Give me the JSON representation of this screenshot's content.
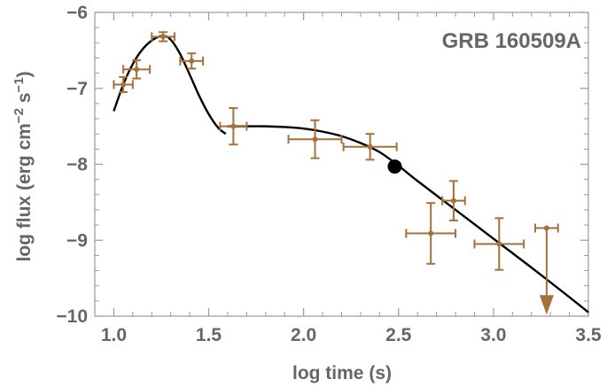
{
  "chart_data": {
    "type": "scatter",
    "title": "GRB 160509A",
    "xlabel": "log time (s)",
    "ylabel_parts": [
      "log flux (erg cm",
      "−2",
      " s",
      "−1",
      ")"
    ],
    "xlim": [
      0.9,
      3.5
    ],
    "ylim": [
      -10,
      -6
    ],
    "xticks": [
      1.0,
      1.5,
      2.0,
      2.5,
      3.0,
      3.5
    ],
    "xtick_labels": [
      "1.0",
      "1.5",
      "2.0",
      "2.5",
      "3.0",
      "3.5"
    ],
    "yticks": [
      -6,
      -7,
      -8,
      -9,
      -10
    ],
    "ytick_labels": [
      "−6",
      "−7",
      "−8",
      "−9",
      "−10"
    ],
    "colors": {
      "data": "#A5703A",
      "model": "#000000",
      "text": "#666666",
      "frame": "#999999"
    },
    "series": [
      {
        "marker": "errorbar",
        "points": [
          {
            "x": 1.05,
            "y": -6.95,
            "xerr": [
              0.05,
              0.05
            ],
            "yerr": [
              0.1,
              0.1
            ]
          },
          {
            "x": 1.12,
            "y": -6.75,
            "xerr": [
              0.07,
              0.07
            ],
            "yerr": [
              0.12,
              0.12
            ]
          },
          {
            "x": 1.26,
            "y": -6.32,
            "xerr": [
              0.06,
              0.06
            ],
            "yerr": [
              0.06,
              0.06
            ]
          },
          {
            "x": 1.41,
            "y": -6.64,
            "xerr": [
              0.06,
              0.06
            ],
            "yerr": [
              0.1,
              0.1
            ]
          },
          {
            "x": 1.63,
            "y": -7.5,
            "xerr": [
              0.07,
              0.07
            ],
            "yerr": [
              0.24,
              0.24
            ]
          },
          {
            "x": 2.06,
            "y": -7.67,
            "xerr": [
              0.14,
              0.14
            ],
            "yerr": [
              0.25,
              0.25
            ]
          },
          {
            "x": 2.35,
            "y": -7.77,
            "xerr": [
              0.14,
              0.14
            ],
            "yerr": [
              0.17,
              0.17
            ]
          },
          {
            "x": 2.67,
            "y": -8.91,
            "xerr": [
              0.13,
              0.13
            ],
            "yerr": [
              0.4,
              0.4
            ]
          },
          {
            "x": 2.79,
            "y": -8.48,
            "xerr": [
              0.06,
              0.06
            ],
            "yerr": [
              0.26,
              0.26
            ]
          },
          {
            "x": 3.03,
            "y": -9.05,
            "xerr": [
              0.13,
              0.13
            ],
            "yerr": [
              0.34,
              0.34
            ]
          },
          {
            "x": 3.28,
            "y": -8.84,
            "xerr": [
              0.06,
              0.06
            ],
            "yerr": [
              0,
              0
            ],
            "upper_limit": true,
            "arrow_to": -9.98
          }
        ]
      },
      {
        "marker": "line",
        "segments": [
          {
            "x": [
              1.0,
              1.05,
              1.1,
              1.15,
              1.2,
              1.25,
              1.28,
              1.31,
              1.35,
              1.4,
              1.45,
              1.5,
              1.55,
              1.59
            ],
            "y": [
              -7.3,
              -6.95,
              -6.68,
              -6.49,
              -6.37,
              -6.31,
              -6.32,
              -6.39,
              -6.55,
              -6.82,
              -7.1,
              -7.34,
              -7.52,
              -7.6
            ]
          },
          {
            "x": [
              1.6,
              1.7,
              1.8,
              1.9,
              2.0,
              2.1,
              2.2,
              2.3,
              2.4,
              2.5,
              2.6,
              2.8,
              3.0,
              3.2,
              3.4,
              3.5
            ],
            "y": [
              -7.5,
              -7.5,
              -7.5,
              -7.51,
              -7.53,
              -7.57,
              -7.63,
              -7.72,
              -7.84,
              -8.02,
              -8.22,
              -8.6,
              -8.98,
              -9.36,
              -9.75,
              -9.95
            ]
          }
        ]
      },
      {
        "marker": "dot",
        "points": [
          {
            "x": 2.48,
            "y": -8.03
          }
        ]
      }
    ]
  }
}
